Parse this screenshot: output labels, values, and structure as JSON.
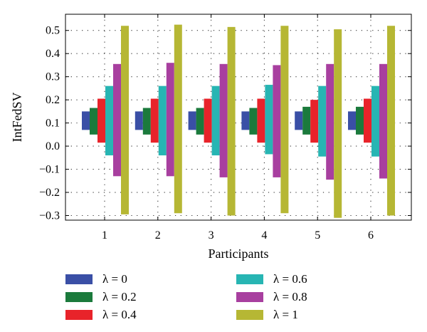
{
  "chart_data": {
    "type": "bar",
    "title": "",
    "xlabel": "Participants",
    "ylabel": "IntFedSV",
    "ylim": [
      -0.32,
      0.57
    ],
    "yticks": [
      0.5,
      0.4,
      0.3,
      0.2,
      0.1,
      0.0,
      -0.1,
      -0.2,
      -0.3
    ],
    "ytick_labels": [
      "0.5",
      "0.4",
      "0.3",
      "0.2",
      "0.1",
      "0.0",
      "−0.1",
      "−0.2",
      "−0.3"
    ],
    "categories": [
      "1",
      "2",
      "3",
      "4",
      "5",
      "6"
    ],
    "grid": "dotted",
    "bars_span": "floating",
    "legend_position": "bottom",
    "series": [
      {
        "name": "λ = 0",
        "color": "#3a4fa6",
        "low": [
          0.07,
          0.07,
          0.07,
          0.07,
          0.07,
          0.07
        ],
        "high": [
          0.15,
          0.15,
          0.15,
          0.15,
          0.15,
          0.15
        ]
      },
      {
        "name": "λ = 0.2",
        "color": "#1b7a3c",
        "low": [
          0.05,
          0.05,
          0.05,
          0.05,
          0.05,
          0.05
        ],
        "high": [
          0.165,
          0.165,
          0.165,
          0.165,
          0.17,
          0.17
        ]
      },
      {
        "name": "λ = 0.4",
        "color": "#e8232a",
        "low": [
          0.015,
          0.015,
          0.015,
          0.015,
          0.015,
          0.015
        ],
        "high": [
          0.205,
          0.205,
          0.205,
          0.205,
          0.2,
          0.205
        ]
      },
      {
        "name": "λ = 0.6",
        "color": "#27b5b3",
        "low": [
          -0.04,
          -0.04,
          -0.04,
          -0.035,
          -0.045,
          -0.045
        ],
        "high": [
          0.26,
          0.26,
          0.26,
          0.265,
          0.26,
          0.26
        ]
      },
      {
        "name": "λ = 0.8",
        "color": "#a83f9f",
        "low": [
          -0.13,
          -0.13,
          -0.135,
          -0.135,
          -0.145,
          -0.14
        ],
        "high": [
          0.355,
          0.36,
          0.355,
          0.35,
          0.355,
          0.355
        ]
      },
      {
        "name": "λ = 1",
        "color": "#b6b734",
        "low": [
          -0.295,
          -0.29,
          -0.3,
          -0.29,
          -0.31,
          -0.3
        ],
        "high": [
          0.52,
          0.525,
          0.515,
          0.52,
          0.505,
          0.52
        ]
      }
    ]
  }
}
